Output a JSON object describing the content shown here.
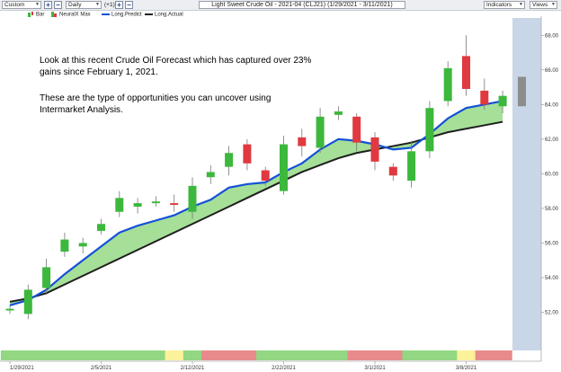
{
  "toolbar": {
    "period": "Custom",
    "interval": "Daily",
    "offset": "(+1)",
    "title": "Light Sweet Crude Oil - 2021-04 (CLJ21) (1/29/2021 - 3/11/2021)",
    "indicators_label": "Indicators",
    "views_label": "Views"
  },
  "legend": {
    "bar": "Bar",
    "neural": "NeuralX Max",
    "predict": "Long.Predict",
    "actual": "Long.Actual"
  },
  "annotation": {
    "line1": "Look at this recent Crude Oil Forecast which has captured over 23%",
    "line2": "gains since February 1, 2021.",
    "line3": "These are the type of opportunities you can uncover using",
    "line4": "Intermarket Analysis."
  },
  "colors": {
    "up": "#3cb83c",
    "down": "#e0393f",
    "predict": "#1450d8",
    "actual": "#1e1e1e",
    "fill": "#a5df98",
    "gray_bar": "#8c8c8c",
    "band_green": "#93d783",
    "band_red": "#e88a8c",
    "band_yellow": "#fbf29a"
  },
  "chart_data": {
    "type": "candlestick",
    "ylim": [
      50,
      69
    ],
    "y_ticks": [
      "52.00",
      "54.00",
      "56.00",
      "58.00",
      "60.00",
      "62.00",
      "64.00",
      "66.00",
      "68.00"
    ],
    "x_ticks": [
      "1/29/2021",
      "2/5/2021",
      "2/12/2021",
      "2/22/2021",
      "3/1/2021",
      "3/8/2021"
    ],
    "x_tick_index": [
      0,
      5,
      10,
      15,
      20,
      25
    ],
    "candles": [
      {
        "open": 52.1,
        "close": 52.2,
        "high": 52.4,
        "low": 51.9
      },
      {
        "open": 51.9,
        "close": 53.3,
        "high": 53.6,
        "low": 51.6
      },
      {
        "open": 53.4,
        "close": 54.6,
        "high": 55.1,
        "low": 53.0
      },
      {
        "open": 55.5,
        "close": 56.2,
        "high": 56.6,
        "low": 55.2
      },
      {
        "open": 55.8,
        "close": 56.0,
        "high": 56.3,
        "low": 55.4
      },
      {
        "open": 56.7,
        "close": 57.1,
        "high": 57.4,
        "low": 56.5
      },
      {
        "open": 57.8,
        "close": 58.6,
        "high": 59.0,
        "low": 57.5
      },
      {
        "open": 58.1,
        "close": 58.3,
        "high": 58.6,
        "low": 57.7
      },
      {
        "open": 58.3,
        "close": 58.4,
        "high": 58.7,
        "low": 58.1
      },
      {
        "open": 58.3,
        "close": 58.2,
        "high": 58.8,
        "low": 57.8
      },
      {
        "open": 57.8,
        "close": 59.3,
        "high": 59.8,
        "low": 57.4
      },
      {
        "open": 59.8,
        "close": 60.1,
        "high": 60.5,
        "low": 59.4
      },
      {
        "open": 60.4,
        "close": 61.2,
        "high": 61.6,
        "low": 59.9
      },
      {
        "open": 61.7,
        "close": 60.6,
        "high": 62.0,
        "low": 60.2
      },
      {
        "open": 60.2,
        "close": 59.6,
        "high": 60.4,
        "low": 59.3
      },
      {
        "open": 59.0,
        "close": 61.7,
        "high": 62.2,
        "low": 58.8
      },
      {
        "open": 62.1,
        "close": 61.6,
        "high": 62.6,
        "low": 61.0
      },
      {
        "open": 61.5,
        "close": 63.3,
        "high": 63.8,
        "low": 61.2
      },
      {
        "open": 63.4,
        "close": 63.6,
        "high": 63.9,
        "low": 63.1
      },
      {
        "open": 63.3,
        "close": 61.8,
        "high": 63.5,
        "low": 61.3
      },
      {
        "open": 62.1,
        "close": 60.7,
        "high": 62.4,
        "low": 60.2
      },
      {
        "open": 60.4,
        "close": 59.9,
        "high": 60.6,
        "low": 59.6
      },
      {
        "open": 59.6,
        "close": 61.3,
        "high": 61.9,
        "low": 59.2
      },
      {
        "open": 61.3,
        "close": 63.8,
        "high": 64.2,
        "low": 60.9
      },
      {
        "open": 64.2,
        "close": 66.1,
        "high": 66.5,
        "low": 63.9
      },
      {
        "open": 66.8,
        "close": 64.9,
        "high": 68.0,
        "low": 64.5
      },
      {
        "open": 64.8,
        "close": 64.0,
        "high": 65.5,
        "low": 63.7
      },
      {
        "open": 63.9,
        "close": 64.5,
        "high": 64.8,
        "low": 63.5
      }
    ],
    "gray_candle": {
      "open": 63.9,
      "close": 65.6
    },
    "long_predict": [
      52.4,
      52.7,
      53.3,
      54.2,
      55.0,
      55.8,
      56.6,
      57.0,
      57.3,
      57.6,
      58.1,
      58.5,
      59.2,
      59.4,
      59.5,
      60.1,
      60.6,
      61.4,
      62.0,
      61.9,
      61.7,
      61.4,
      61.5,
      62.3,
      63.2,
      63.8,
      64.0,
      64.2
    ],
    "long_actual": [
      52.6,
      52.8,
      53.1,
      53.6,
      54.1,
      54.6,
      55.1,
      55.6,
      56.1,
      56.6,
      57.1,
      57.6,
      58.1,
      58.6,
      59.1,
      59.6,
      60.1,
      60.5,
      60.9,
      61.2,
      61.4,
      61.6,
      61.8,
      62.1,
      62.4,
      62.6,
      62.8,
      63.0
    ],
    "signal_band": [
      "green",
      "green",
      "green",
      "green",
      "green",
      "green",
      "green",
      "green",
      "green",
      "yellow",
      "green",
      "red",
      "red",
      "red",
      "green",
      "green",
      "green",
      "green",
      "green",
      "red",
      "red",
      "red",
      "green",
      "green",
      "green",
      "yellow",
      "red",
      "red"
    ]
  }
}
